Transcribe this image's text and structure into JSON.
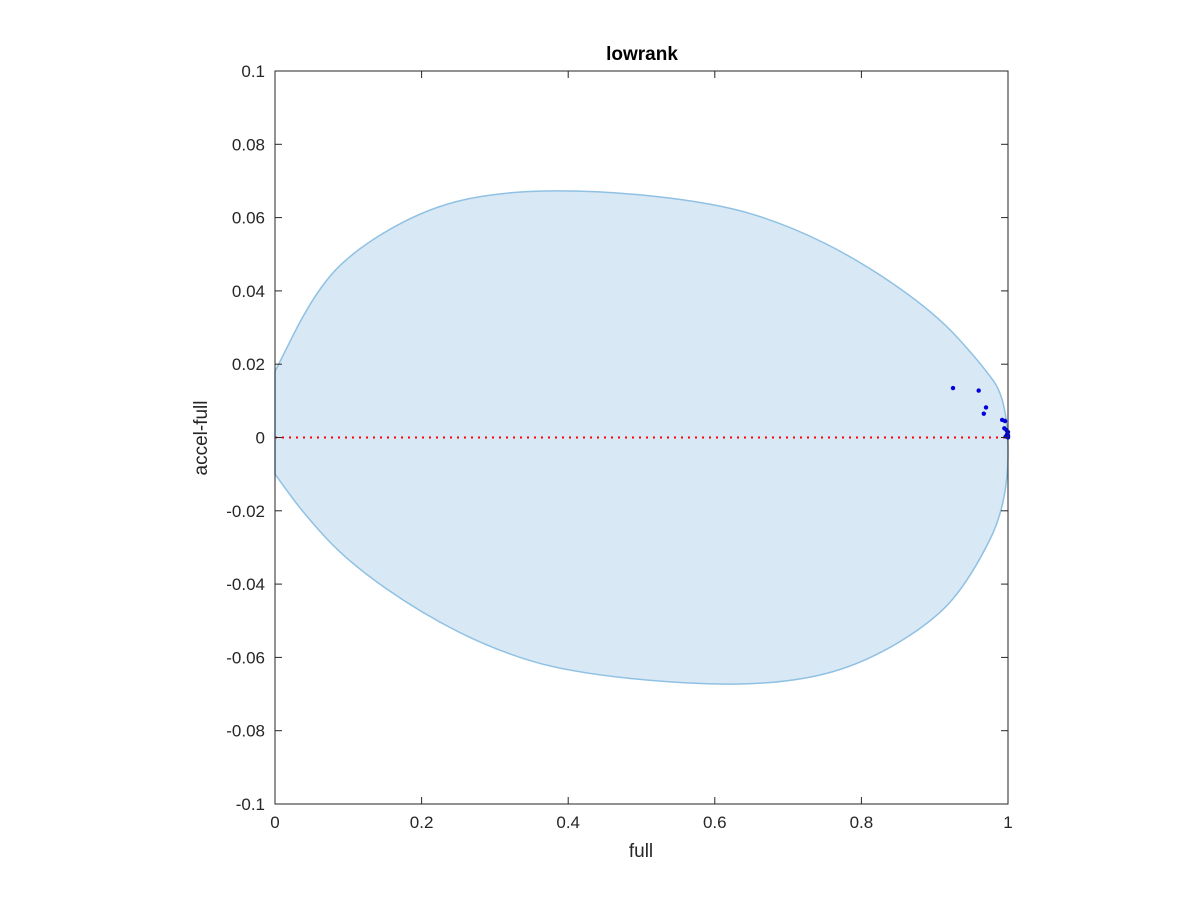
{
  "chart_data": {
    "type": "scatter",
    "title": "lowrank",
    "xlabel": "full",
    "ylabel": "accel-full",
    "xlim": [
      0,
      1
    ],
    "ylim": [
      -0.1,
      0.1
    ],
    "x_ticks": [
      0,
      0.2,
      0.4,
      0.6,
      0.8,
      1
    ],
    "x_tick_labels": [
      "0",
      "0.2",
      "0.4",
      "0.6",
      "0.8",
      "1"
    ],
    "y_ticks": [
      -0.1,
      -0.08,
      -0.06,
      -0.04,
      -0.02,
      0,
      0.02,
      0.04,
      0.06,
      0.08,
      0.1
    ],
    "y_tick_labels": [
      "-0.1",
      "-0.08",
      "-0.06",
      "-0.04",
      "-0.02",
      "0",
      "0.02",
      "0.04",
      "0.06",
      "0.08",
      "0.1"
    ],
    "grid": false,
    "reference_line": {
      "y": 0,
      "style": "dotted",
      "color": "#ff0000"
    },
    "region": {
      "shape": "ellipse",
      "fill": "#d9e8f5",
      "stroke": "#8fc1e3",
      "outline": [
        [
          0,
          0.018
        ],
        [
          0.05,
          0.038
        ],
        [
          0.1,
          0.05
        ],
        [
          0.2,
          0.062
        ],
        [
          0.3,
          0.067
        ],
        [
          0.44,
          0.0675
        ],
        [
          0.6,
          0.064
        ],
        [
          0.7,
          0.058
        ],
        [
          0.8,
          0.048
        ],
        [
          0.9,
          0.034
        ],
        [
          0.96,
          0.021
        ],
        [
          1,
          0.01
        ],
        [
          1,
          -0.018
        ],
        [
          0.95,
          -0.038
        ],
        [
          0.9,
          -0.05
        ],
        [
          0.8,
          -0.062
        ],
        [
          0.7,
          -0.067
        ],
        [
          0.57,
          -0.0675
        ],
        [
          0.4,
          -0.064
        ],
        [
          0.3,
          -0.058
        ],
        [
          0.2,
          -0.048
        ],
        [
          0.1,
          -0.034
        ],
        [
          0.04,
          -0.021
        ],
        [
          0,
          -0.01
        ]
      ]
    },
    "series": [
      {
        "color": "#0000dd",
        "points": [
          [
            0.925,
            0.0135
          ],
          [
            0.96,
            0.0128
          ],
          [
            0.97,
            0.0082
          ],
          [
            0.967,
            0.0065
          ],
          [
            0.992,
            0.0048
          ],
          [
            0.996,
            0.0045
          ],
          [
            0.995,
            0.0025
          ],
          [
            0.998,
            0.002
          ],
          [
            1.0,
            0.0015
          ],
          [
            0.999,
            0.001
          ],
          [
            1.0,
            0.0006
          ],
          [
            0.997,
            0.0003
          ],
          [
            1.0,
            0.0002
          ],
          [
            1.0,
            0.0
          ]
        ]
      }
    ]
  }
}
